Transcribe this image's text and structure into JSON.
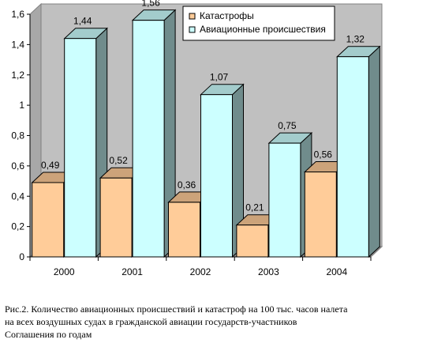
{
  "chart_data": {
    "type": "bar",
    "categories": [
      "2000",
      "2001",
      "2002",
      "2003",
      "2004"
    ],
    "series": [
      {
        "name": "Катастрофы",
        "color": "#ffcc99",
        "values": [
          0.49,
          0.52,
          0.36,
          0.21,
          0.56
        ],
        "labels": [
          "0,49",
          "0,52",
          "0,36",
          "0,21",
          "0,56"
        ]
      },
      {
        "name": "Авиационные происшествия",
        "color": "#ccffff",
        "values": [
          1.44,
          1.56,
          1.07,
          0.75,
          1.32
        ],
        "labels": [
          "1,44",
          "1,56",
          "1,07",
          "0,75",
          "1,32"
        ]
      }
    ],
    "ylim": [
      0,
      1.6
    ],
    "yticks": [
      0,
      0.2,
      0.4,
      0.6,
      0.8,
      1,
      1.2,
      1.4,
      1.6
    ],
    "ytick_labels": [
      "0",
      "0,2",
      "0,4",
      "0,6",
      "0,8",
      "1",
      "1,2",
      "1,4",
      "1,6"
    ],
    "grid": false,
    "three_d": true,
    "legend_position": "top-right",
    "wall_color": "#c0c0c0",
    "caption_lines": [
      "Рис.2. Количество авиационных происшествий и катастроф на 100 тыс. часов налета",
      "на всех воздушных судах  в гражданской авиации государств-участников",
      "Соглашения по годам"
    ]
  }
}
